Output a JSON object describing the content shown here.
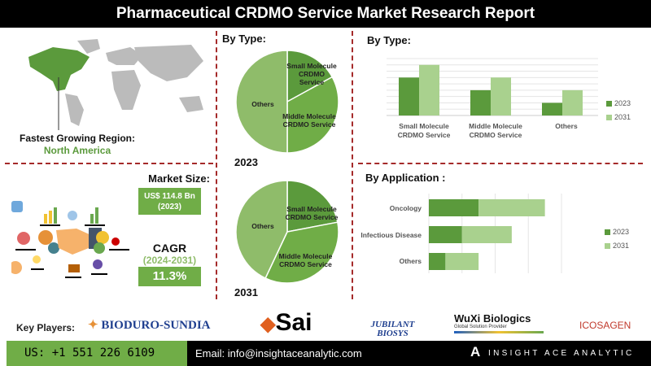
{
  "title": "Pharmaceutical CRDMO Service Market Research Report",
  "region": {
    "label": "Fastest Growing Region:",
    "value": "North America"
  },
  "market_size": {
    "label": "Market Size:",
    "value": "US$ 114.8 Bn",
    "year": "(2023)"
  },
  "cagr": {
    "label": "CAGR",
    "period": "(2024-2031)",
    "value": "11.3%"
  },
  "colors": {
    "dark_green": "#5b9a3c",
    "mid_green": "#70ad47",
    "light_green": "#a9d18e",
    "others_green": "#8fbc6a",
    "accent_red": "#a52a2a"
  },
  "key_players": {
    "label": "Key Players:",
    "logos": [
      "BIODURO-SUNDIA",
      "Sai",
      "JUBILANT BIOSYS",
      "WuXi Biologics",
      "ICOSAGEN"
    ],
    "wuxi_tag": "Global Solution Provider"
  },
  "footer": {
    "phone": "US: +1 551 226 6109",
    "email": "Email: info@insightaceanalytic.com",
    "brand": "INSIGHT ACE ANALYTIC"
  },
  "chart_data": [
    {
      "type": "pie",
      "title": "By Type:",
      "year": "2023",
      "categories": [
        "Small Molecule CRDMO Service",
        "Middle Molecule CRDMO Service",
        "Others"
      ],
      "values": [
        17,
        33,
        50
      ]
    },
    {
      "type": "pie",
      "year": "2031",
      "categories": [
        "Small Molecule CRDMO Service",
        "Middle Molecule CRDMO Service",
        "Others"
      ],
      "values": [
        22,
        35,
        43
      ]
    },
    {
      "type": "bar",
      "title": "By  Type:",
      "categories": [
        "Small Molecule CRDMO Service",
        "Middle Molecule CRDMO Service",
        "Others"
      ],
      "series": [
        {
          "name": "2023",
          "values": [
            6,
            4,
            2
          ]
        },
        {
          "name": "2031",
          "values": [
            8,
            6,
            4
          ]
        }
      ],
      "ylim": [
        0,
        9
      ],
      "grid": true,
      "legend": "right"
    },
    {
      "type": "bar",
      "orientation": "horizontal",
      "stacked": true,
      "title": "By Application :",
      "categories": [
        "Oncology",
        "Infectious Disease",
        "Others"
      ],
      "series": [
        {
          "name": "2023",
          "values": [
            1.5,
            1.0,
            0.5
          ]
        },
        {
          "name": "2031",
          "values": [
            2.0,
            1.5,
            1.0
          ]
        }
      ],
      "xlim": [
        0,
        4
      ],
      "grid": true,
      "legend": "right"
    }
  ]
}
